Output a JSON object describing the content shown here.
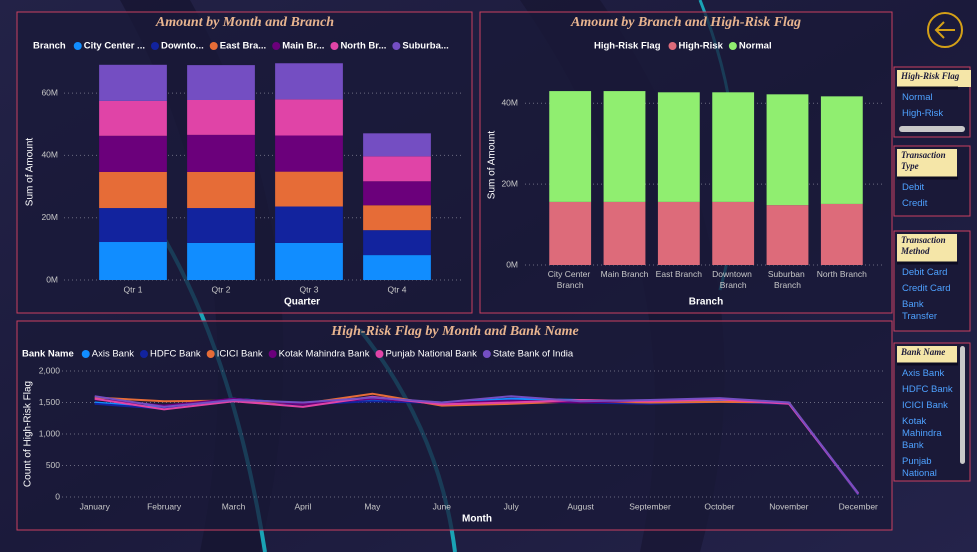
{
  "chart_data": [
    {
      "type": "bar",
      "stacked": true,
      "title": "Amount by Month and Branch",
      "legend_title": "Branch",
      "x_label": "Quarter",
      "y_label": "Sum of Amount",
      "categories": [
        "Qtr 1",
        "Qtr 2",
        "Qtr 3",
        "Qtr 4"
      ],
      "series": [
        {
          "name": "City Center ...",
          "color": "#118DFF",
          "values": [
            12200000,
            11900000,
            11900000,
            8000000
          ]
        },
        {
          "name": "Downto...",
          "color": "#12239E",
          "values": [
            10900000,
            11200000,
            11700000,
            8000000
          ]
        },
        {
          "name": "East Bra...",
          "color": "#E66C37",
          "values": [
            11600000,
            11600000,
            11200000,
            8000000
          ]
        },
        {
          "name": "Main Br...",
          "color": "#6B007B",
          "values": [
            11600000,
            11900000,
            11600000,
            7700000
          ]
        },
        {
          "name": "North Br...",
          "color": "#E044A7",
          "values": [
            11200000,
            11200000,
            11600000,
            8000000
          ]
        },
        {
          "name": "Suburba...",
          "color": "#744EC2",
          "values": [
            11600000,
            11200000,
            11600000,
            7400000
          ]
        }
      ],
      "ylim": [
        0,
        70000000
      ],
      "yticks": [
        {
          "value": 0,
          "label": "0M"
        },
        {
          "value": 20000000,
          "label": "20M"
        },
        {
          "value": 40000000,
          "label": "40M"
        },
        {
          "value": 60000000,
          "label": "60M"
        }
      ],
      "grid": true
    },
    {
      "type": "bar",
      "stacked": true,
      "title": "Amount by Branch and High-Risk Flag",
      "legend_title": "High-Risk Flag",
      "x_label": "Branch",
      "y_label": "Sum of Amount",
      "categories": [
        "City Center Branch",
        "Main Branch",
        "East Branch",
        "Downtown Branch",
        "Suburban Branch",
        "North Branch"
      ],
      "series": [
        {
          "name": "High-Risk",
          "color": "#DD6B7A",
          "values": [
            15600000,
            15600000,
            15600000,
            15600000,
            14800000,
            15100000
          ]
        },
        {
          "name": "Normal",
          "color": "#90EE70",
          "values": [
            27400000,
            27400000,
            27100000,
            27100000,
            27400000,
            26600000
          ]
        }
      ],
      "ylim": [
        0,
        45000000
      ],
      "yticks": [
        {
          "value": 0,
          "label": "0M"
        },
        {
          "value": 20000000,
          "label": "20M"
        },
        {
          "value": 40000000,
          "label": "40M"
        }
      ],
      "grid": true
    },
    {
      "type": "line",
      "title": "High-Risk Flag by Month and Bank Name",
      "legend_title": "Bank Name",
      "x_label": "Month",
      "y_label": "Count of High-Risk Flag",
      "categories": [
        "January",
        "February",
        "March",
        "April",
        "May",
        "June",
        "July",
        "August",
        "September",
        "October",
        "November",
        "December"
      ],
      "series": [
        {
          "name": "Axis Bank",
          "color": "#118DFF",
          "values": [
            1500,
            1420,
            1560,
            1480,
            1540,
            1500,
            1560,
            1540,
            1500,
            1530,
            1490,
            40
          ]
        },
        {
          "name": "HDFC Bank",
          "color": "#12239E",
          "values": [
            1480,
            1400,
            1520,
            1470,
            1520,
            1490,
            1510,
            1500,
            1480,
            1510,
            1480,
            45
          ]
        },
        {
          "name": "ICICI Bank",
          "color": "#E66C37",
          "values": [
            1580,
            1520,
            1530,
            1480,
            1640,
            1450,
            1480,
            1520,
            1500,
            1510,
            1500,
            50
          ]
        },
        {
          "name": "Kotak Mahindra Bank",
          "color": "#6B007B",
          "values": [
            1550,
            1450,
            1560,
            1470,
            1560,
            1490,
            1530,
            1500,
            1530,
            1560,
            1490,
            50
          ]
        },
        {
          "name": "Punjab National Bank",
          "color": "#E044A7",
          "values": [
            1560,
            1390,
            1520,
            1430,
            1590,
            1470,
            1500,
            1540,
            1520,
            1550,
            1480,
            55
          ]
        },
        {
          "name": "State Bank of India",
          "color": "#744EC2",
          "values": [
            1600,
            1430,
            1540,
            1500,
            1580,
            1500,
            1600,
            1520,
            1540,
            1570,
            1500,
            60
          ]
        }
      ],
      "ylim": [
        0,
        2000
      ],
      "yticks": [
        0,
        500,
        {
          "value": 1000,
          "label": "1,000"
        },
        {
          "value": 1500,
          "label": "1,500"
        },
        {
          "value": 2000,
          "label": "2,000"
        }
      ],
      "grid": true
    }
  ],
  "slicers": [
    {
      "title": "High-Risk Flag",
      "items": [
        "Normal",
        "High-Risk"
      ]
    },
    {
      "title": "Transaction Type",
      "items": [
        "Debit",
        "Credit"
      ]
    },
    {
      "title": "Transaction Method",
      "items": [
        "Debit Card",
        "Credit Card",
        "Bank Transfer"
      ]
    },
    {
      "title": "Bank Name",
      "items": [
        "Axis Bank",
        "HDFC Bank",
        "ICICI Bank",
        "Kotak Mahindra Bank",
        "Punjab National"
      ]
    }
  ]
}
